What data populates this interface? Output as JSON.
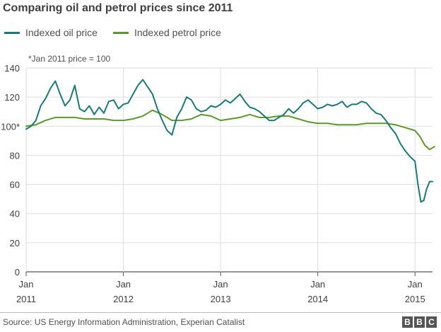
{
  "title": "Comparing oil and petrol prices since 2011",
  "note": "*Jan 2011 price = 100",
  "source": "Source: US Energy Information Administration, Experian Catalist",
  "logo": [
    "B",
    "B",
    "C"
  ],
  "chart_data": {
    "type": "line",
    "title": "Comparing oil and petrol prices since 2011",
    "ylim": [
      0,
      140
    ],
    "yticks": [
      0,
      20,
      40,
      60,
      80,
      100,
      120,
      140
    ],
    "ytick_labels": [
      "0",
      "20",
      "40",
      "60",
      "80",
      "100*",
      "120",
      "140"
    ],
    "xticks": [
      {
        "year": 2011.0,
        "line1": "Jan",
        "line2": "2011"
      },
      {
        "year": 2012.0,
        "line1": "Jan",
        "line2": "2012"
      },
      {
        "year": 2013.0,
        "line1": "Jan",
        "line2": "2013"
      },
      {
        "year": 2014.0,
        "line1": "Jan",
        "line2": "2014"
      },
      {
        "year": 2015.0,
        "line1": "Jan",
        "line2": "2015"
      }
    ],
    "grid": true,
    "legend": "top-left",
    "series": [
      {
        "name": "Indexed oil price",
        "color": "#1a7a7a",
        "x": [
          2011.0,
          2011.05,
          2011.1,
          2011.15,
          2011.2,
          2011.25,
          2011.3,
          2011.35,
          2011.4,
          2011.45,
          2011.5,
          2011.55,
          2011.6,
          2011.65,
          2011.7,
          2011.75,
          2011.8,
          2011.85,
          2011.9,
          2011.95,
          2012.0,
          2012.05,
          2012.1,
          2012.15,
          2012.2,
          2012.25,
          2012.3,
          2012.35,
          2012.4,
          2012.45,
          2012.5,
          2012.55,
          2012.6,
          2012.65,
          2012.7,
          2012.75,
          2012.8,
          2012.85,
          2012.9,
          2012.95,
          2013.0,
          2013.05,
          2013.1,
          2013.15,
          2013.2,
          2013.25,
          2013.3,
          2013.35,
          2013.4,
          2013.45,
          2013.5,
          2013.55,
          2013.6,
          2013.65,
          2013.7,
          2013.75,
          2013.8,
          2013.85,
          2013.9,
          2013.95,
          2014.0,
          2014.05,
          2014.1,
          2014.15,
          2014.2,
          2014.25,
          2014.3,
          2014.35,
          2014.4,
          2014.45,
          2014.5,
          2014.55,
          2014.6,
          2014.65,
          2014.7,
          2014.75,
          2014.8,
          2014.85,
          2014.9,
          2014.95,
          2015.0,
          2015.03,
          2015.06,
          2015.09,
          2015.12,
          2015.15,
          2015.18
        ],
        "y": [
          98,
          100,
          104,
          114,
          119,
          126,
          131,
          122,
          114,
          118,
          128,
          112,
          110,
          114,
          108,
          113,
          109,
          117,
          118,
          112,
          115,
          116,
          122,
          128,
          132,
          127,
          122,
          112,
          104,
          97,
          94,
          106,
          112,
          120,
          118,
          112,
          110,
          111,
          114,
          113,
          115,
          118,
          116,
          119,
          122,
          117,
          113,
          112,
          110,
          107,
          104,
          104,
          106,
          108,
          112,
          109,
          112,
          116,
          118,
          115,
          112,
          113,
          115,
          114,
          115,
          117,
          113,
          115,
          115,
          117,
          116,
          112,
          109,
          108,
          104,
          99,
          95,
          88,
          83,
          79,
          76,
          60,
          48,
          49,
          57,
          62,
          62
        ]
      },
      {
        "name": "Indexed petrol price",
        "color": "#5a9a2a",
        "x": [
          2011.0,
          2011.1,
          2011.2,
          2011.3,
          2011.4,
          2011.5,
          2011.6,
          2011.7,
          2011.8,
          2011.9,
          2012.0,
          2012.1,
          2012.2,
          2012.3,
          2012.4,
          2012.5,
          2012.6,
          2012.7,
          2012.8,
          2012.9,
          2013.0,
          2013.1,
          2013.2,
          2013.3,
          2013.4,
          2013.5,
          2013.6,
          2013.7,
          2013.8,
          2013.9,
          2014.0,
          2014.1,
          2014.2,
          2014.3,
          2014.4,
          2014.5,
          2014.6,
          2014.7,
          2014.8,
          2014.9,
          2015.0,
          2015.05,
          2015.1,
          2015.15,
          2015.2
        ],
        "y": [
          100,
          101,
          104,
          106,
          106,
          106,
          105,
          105,
          105,
          104,
          104,
          105,
          107,
          111,
          108,
          104,
          104,
          105,
          108,
          107,
          104,
          105,
          106,
          108,
          106,
          106,
          107,
          107,
          105,
          103,
          102,
          102,
          101,
          101,
          101,
          102,
          102,
          102,
          101,
          99,
          97,
          93,
          87,
          84,
          86
        ]
      }
    ]
  }
}
